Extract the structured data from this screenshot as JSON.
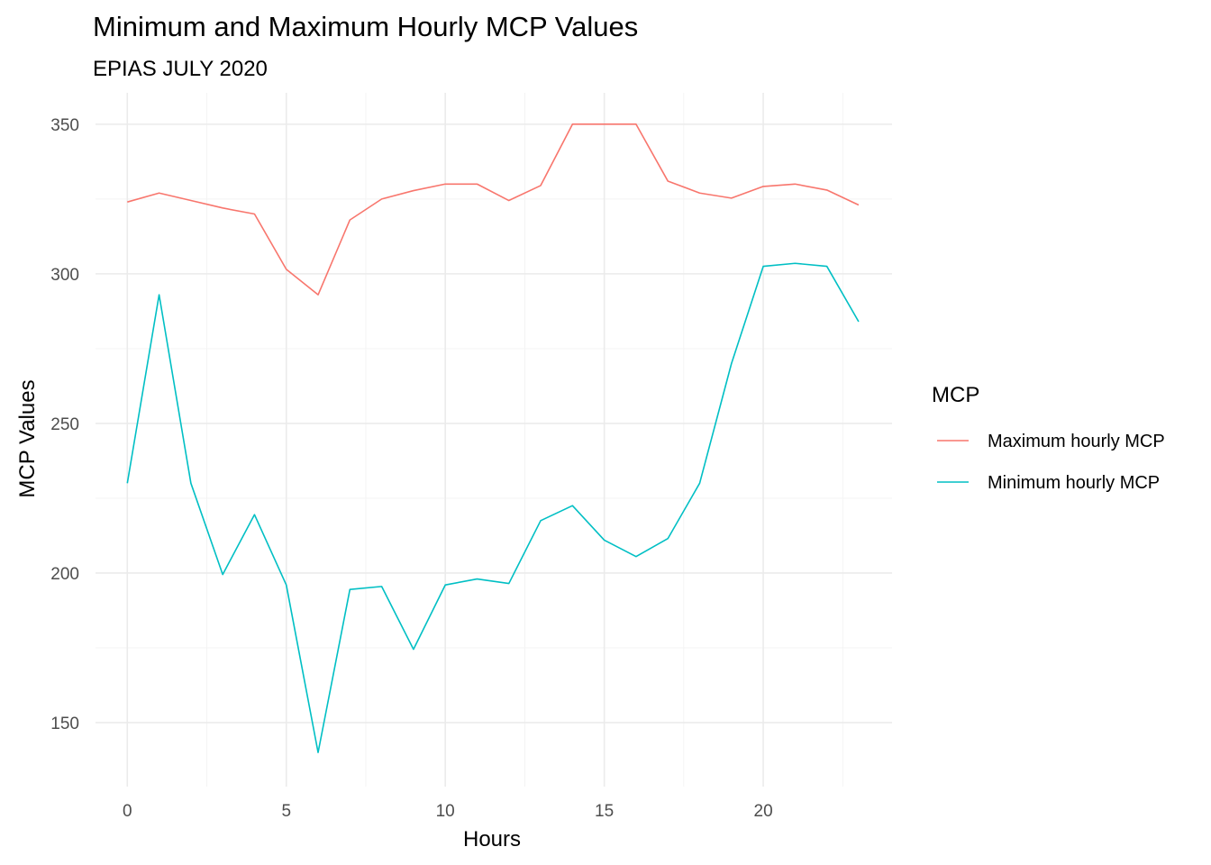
{
  "chart_data": {
    "type": "line",
    "title": "Minimum and Maximum Hourly MCP Values",
    "subtitle": "EPIAS JULY 2020",
    "xlabel": "Hours",
    "ylabel": "MCP Values",
    "xlim": [
      0,
      23
    ],
    "ylim": [
      130,
      360
    ],
    "x_ticks": [
      0,
      5,
      10,
      15,
      20
    ],
    "y_ticks": [
      150,
      200,
      250,
      300,
      350
    ],
    "grid": true,
    "legend_title": "MCP",
    "legend_position": "right",
    "x": [
      0,
      1,
      2,
      3,
      4,
      5,
      6,
      7,
      8,
      9,
      10,
      11,
      12,
      13,
      14,
      15,
      16,
      17,
      18,
      19,
      20,
      21,
      22,
      23
    ],
    "series": [
      {
        "name": "Maximum hourly MCP",
        "color": "#F8766D",
        "values": [
          324,
          327,
          324.5,
          322,
          320,
          301.5,
          293,
          318,
          325,
          327.8,
          330,
          330,
          324.5,
          329.5,
          350,
          350,
          350,
          331,
          327,
          325.3,
          329.2,
          330,
          328,
          323
        ]
      },
      {
        "name": "Minimum hourly MCP",
        "color": "#00BFC4",
        "values": [
          230,
          293,
          230,
          199.5,
          219.5,
          196,
          140,
          194.5,
          195.5,
          174.5,
          196,
          198,
          196.5,
          217.5,
          222.5,
          211,
          205.5,
          211.5,
          230,
          270,
          302.5,
          303.5,
          302.5,
          284
        ]
      }
    ]
  }
}
